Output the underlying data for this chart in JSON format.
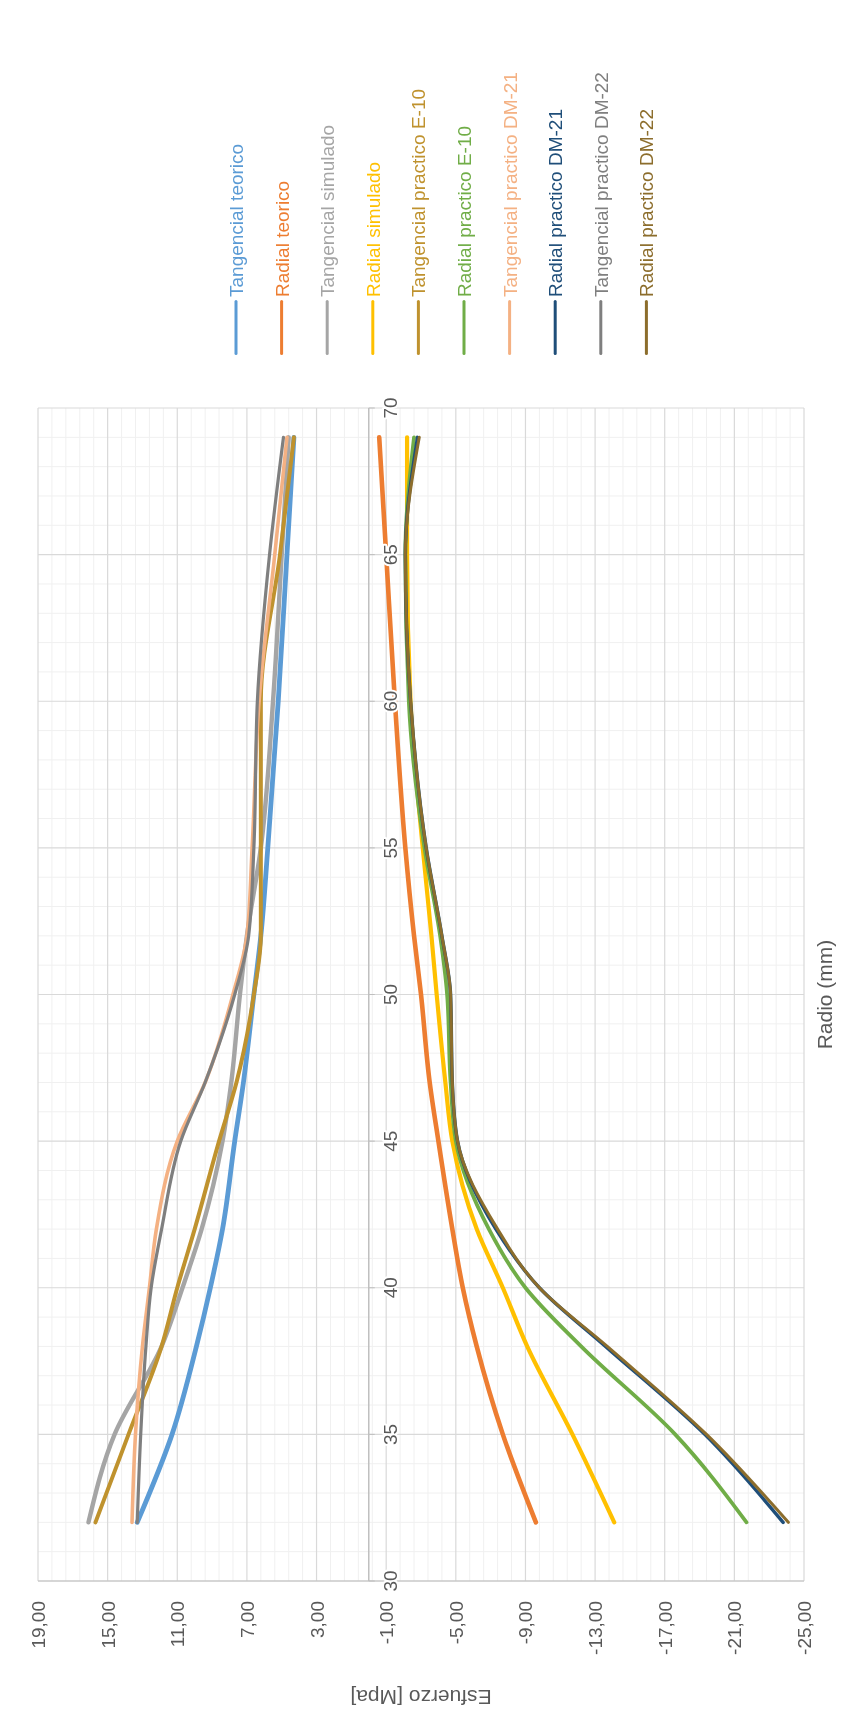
{
  "chart_data": {
    "type": "line",
    "xlabel": "Esfuerzo [Mpa]",
    "ylabel": "Radio (mm)",
    "xlim": [
      19,
      -25
    ],
    "xticks": [
      {
        "value": 19,
        "label": "19,00"
      },
      {
        "value": 15,
        "label": "15,00"
      },
      {
        "value": 11,
        "label": "11,00"
      },
      {
        "value": 7,
        "label": "7,00"
      },
      {
        "value": 3,
        "label": "3,00"
      },
      {
        "value": -1,
        "label": "-1,00"
      },
      {
        "value": -5,
        "label": "-5,00"
      },
      {
        "value": -9,
        "label": "-9,00"
      },
      {
        "value": -13,
        "label": "-13,00"
      },
      {
        "value": -17,
        "label": "-17,00"
      },
      {
        "value": -21,
        "label": "-21,00"
      },
      {
        "value": -25,
        "label": "-25,00"
      }
    ],
    "ylim": [
      30,
      70
    ],
    "yticks": [
      30,
      35,
      40,
      45,
      50,
      55,
      60,
      65,
      70
    ],
    "grid": true,
    "legend": "top",
    "marker": "none",
    "line_style": "solid",
    "series": [
      {
        "name": "Tangencial teorico",
        "color": "#5b9bd5",
        "x": [
          13.3,
          11.3,
          9.9,
          9.1,
          8.4,
          7.7,
          7.2,
          6.6,
          6.2,
          5.8,
          5.2,
          4.7,
          4.3
        ],
        "values": [
          32,
          35,
          38,
          40,
          42,
          45,
          47,
          50,
          52,
          55,
          60,
          65,
          69
        ]
      },
      {
        "name": "Radial teorico",
        "color": "#ed7d31",
        "x": [
          -9.6,
          -7.7,
          -6.2,
          -5.4,
          -4.8,
          -4.0,
          -3.5,
          -3.0,
          -2.6,
          -2.1,
          -1.5,
          -1.0,
          -0.6
        ],
        "values": [
          32,
          35,
          38,
          40,
          42,
          45,
          47,
          50,
          52,
          55,
          60,
          65,
          69
        ]
      },
      {
        "name": "Tangencial simulado",
        "color": "#a5a5a5",
        "x": [
          16.1,
          14.6,
          11.9,
          10.7,
          9.6,
          8.4,
          7.9,
          7.4,
          7.0,
          6.2,
          5.5,
          5.0,
          4.6
        ],
        "values": [
          32,
          35,
          38,
          40,
          42,
          45,
          47,
          50,
          52,
          55,
          60,
          65,
          69
        ]
      },
      {
        "name": "Radial simulado",
        "color": "#ffc000",
        "x": [
          -14.1,
          -11.7,
          -9.1,
          -7.7,
          -6.2,
          -4.8,
          -4.4,
          -3.9,
          -3.6,
          -3.1,
          -2.4,
          -2.2,
          -2.2
        ],
        "values": [
          32,
          35,
          38,
          40,
          42,
          45,
          47,
          50,
          52,
          55,
          60,
          65,
          69
        ]
      },
      {
        "name": "Tangencial practico E-10",
        "color": "#bf922e",
        "x": [
          15.7,
          13.8,
          11.9,
          11.0,
          10.0,
          8.6,
          7.6,
          6.6,
          6.2,
          6.2,
          6.2,
          5.1,
          4.3
        ],
        "values": [
          32,
          35,
          38,
          40,
          42,
          45,
          47,
          50,
          52,
          55,
          60,
          65,
          69
        ]
      },
      {
        "name": "Radial practico E-10",
        "color": "#70ad47",
        "x": [
          -21.7,
          -17.6,
          -12.2,
          -9.0,
          -6.9,
          -5.0,
          -4.7,
          -4.5,
          -4.1,
          -3.2,
          -2.3,
          -2.1,
          -2.6
        ],
        "values": [
          32,
          35,
          38,
          40,
          42,
          45,
          47,
          50,
          52,
          55,
          60,
          65,
          69
        ]
      },
      {
        "name": "Tangencial practico DM-21",
        "color": "#f4b183",
        "x": [
          13.6,
          13.4,
          13.0,
          12.6,
          12.2,
          11.0,
          9.4,
          7.8,
          7.0,
          6.7,
          6.3,
          5.4,
          4.7
        ],
        "values": [
          32,
          35,
          38,
          40,
          42,
          45,
          47,
          50,
          52,
          55,
          60,
          65,
          69
        ]
      },
      {
        "name": "Radial practico DM-21",
        "color": "#1f4e79",
        "x": [
          -23.8,
          -19.3,
          -13.6,
          -9.8,
          -7.3,
          -5.1,
          -4.8,
          -4.7,
          -4.2,
          -3.3,
          -2.4,
          -2.1,
          -2.8
        ],
        "values": [
          32,
          35,
          38,
          40,
          42,
          45,
          47,
          50,
          52,
          55,
          60,
          65,
          69
        ]
      },
      {
        "name": "Tangencial practico DM-22",
        "color": "#7f7f7f",
        "x": [
          13.3,
          13.1,
          12.8,
          12.5,
          11.9,
          10.8,
          9.4,
          7.7,
          6.9,
          6.6,
          6.4,
          5.7,
          4.9
        ],
        "values": [
          32,
          35,
          38,
          40,
          42,
          45,
          47,
          50,
          52,
          55,
          60,
          65,
          69
        ]
      },
      {
        "name": "Radial practico DM-22",
        "color": "#8c6d2c",
        "x": [
          -24.1,
          -19.4,
          -13.7,
          -9.8,
          -7.4,
          -5.1,
          -4.8,
          -4.7,
          -4.2,
          -3.3,
          -2.4,
          -2.1,
          -2.9
        ],
        "values": [
          32,
          35,
          38,
          40,
          42,
          45,
          47,
          50,
          52,
          55,
          60,
          65,
          69
        ]
      }
    ]
  }
}
